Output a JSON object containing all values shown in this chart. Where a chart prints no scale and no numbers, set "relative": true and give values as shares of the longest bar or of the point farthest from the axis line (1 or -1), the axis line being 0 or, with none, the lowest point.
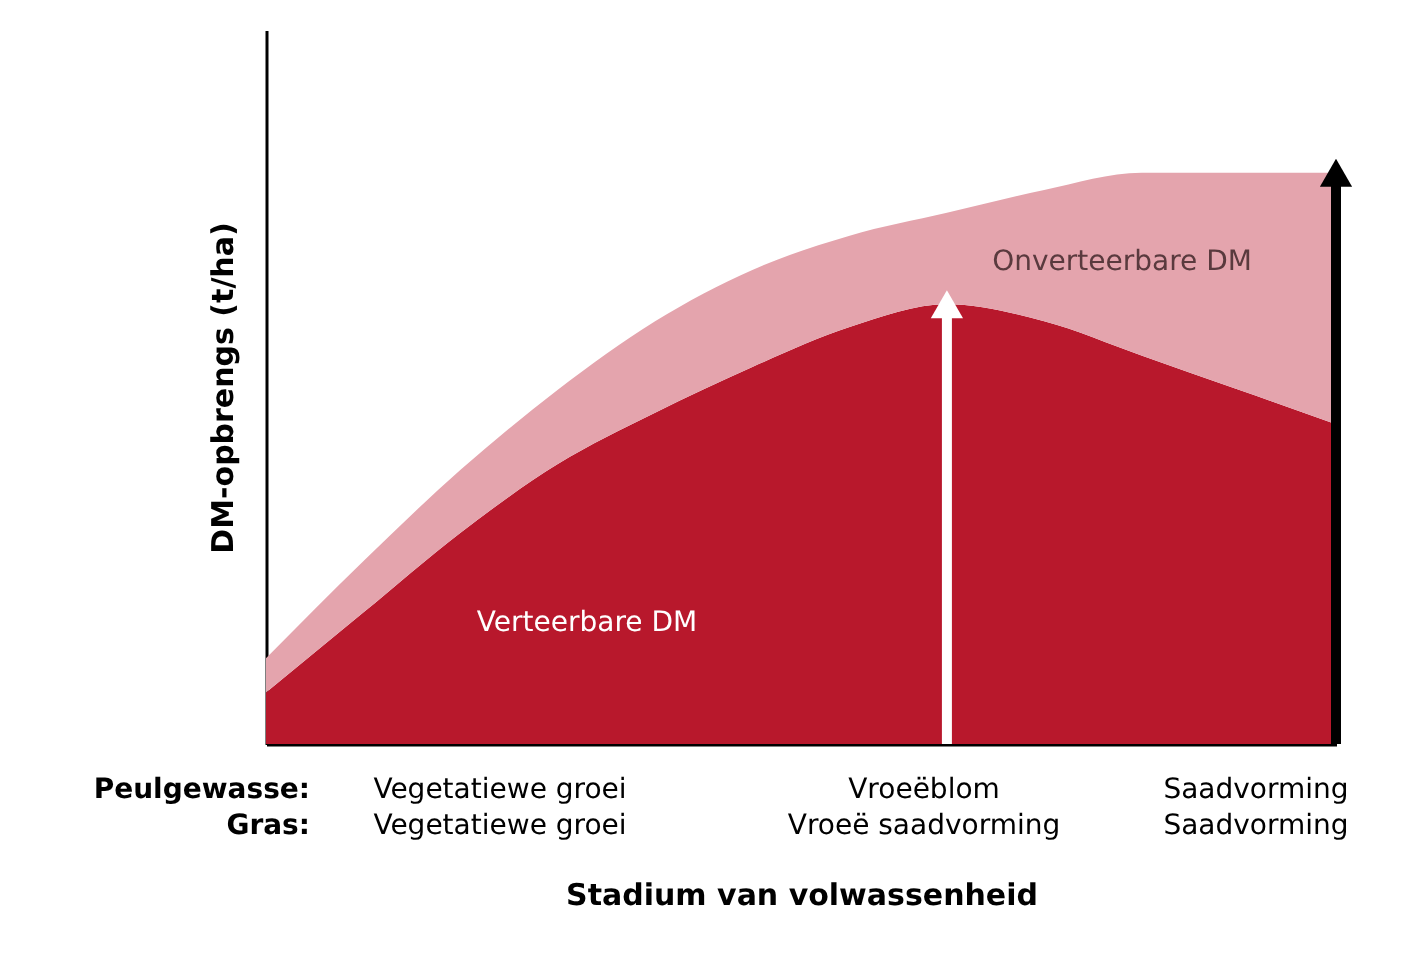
{
  "chart_data": {
    "type": "area",
    "relative": true,
    "stacked": true,
    "xlabel": "Stadium van volwassenheid",
    "ylabel": "DM-opbrengs (t/ha)",
    "categories": [
      null,
      null,
      null,
      null,
      null,
      null,
      null,
      null,
      null,
      null,
      null,
      null
    ],
    "series": [
      {
        "name": "Verteerbare DM",
        "color": "#b8182c",
        "values": [
          0.09,
          0.23,
          0.37,
          0.49,
          0.58,
          0.66,
          0.73,
          0.77,
          0.74,
          0.68,
          0.62,
          0.56
        ]
      },
      {
        "name": "Onverteerbare DM",
        "color": "#e4a4ad",
        "values": [
          0.06,
          0.09,
          0.11,
          0.13,
          0.16,
          0.17,
          0.16,
          0.16,
          0.23,
          0.32,
          0.38,
          0.44
        ]
      }
    ],
    "annotations": [
      "Peulgewasse:",
      "Gras:",
      "Vegetatiewe groei",
      "Vegetatiewe groei",
      "Vroeëblom",
      "Vroeë saadvorming",
      "Saadvorming",
      "Saadvorming"
    ],
    "grid": false,
    "legend": false
  }
}
